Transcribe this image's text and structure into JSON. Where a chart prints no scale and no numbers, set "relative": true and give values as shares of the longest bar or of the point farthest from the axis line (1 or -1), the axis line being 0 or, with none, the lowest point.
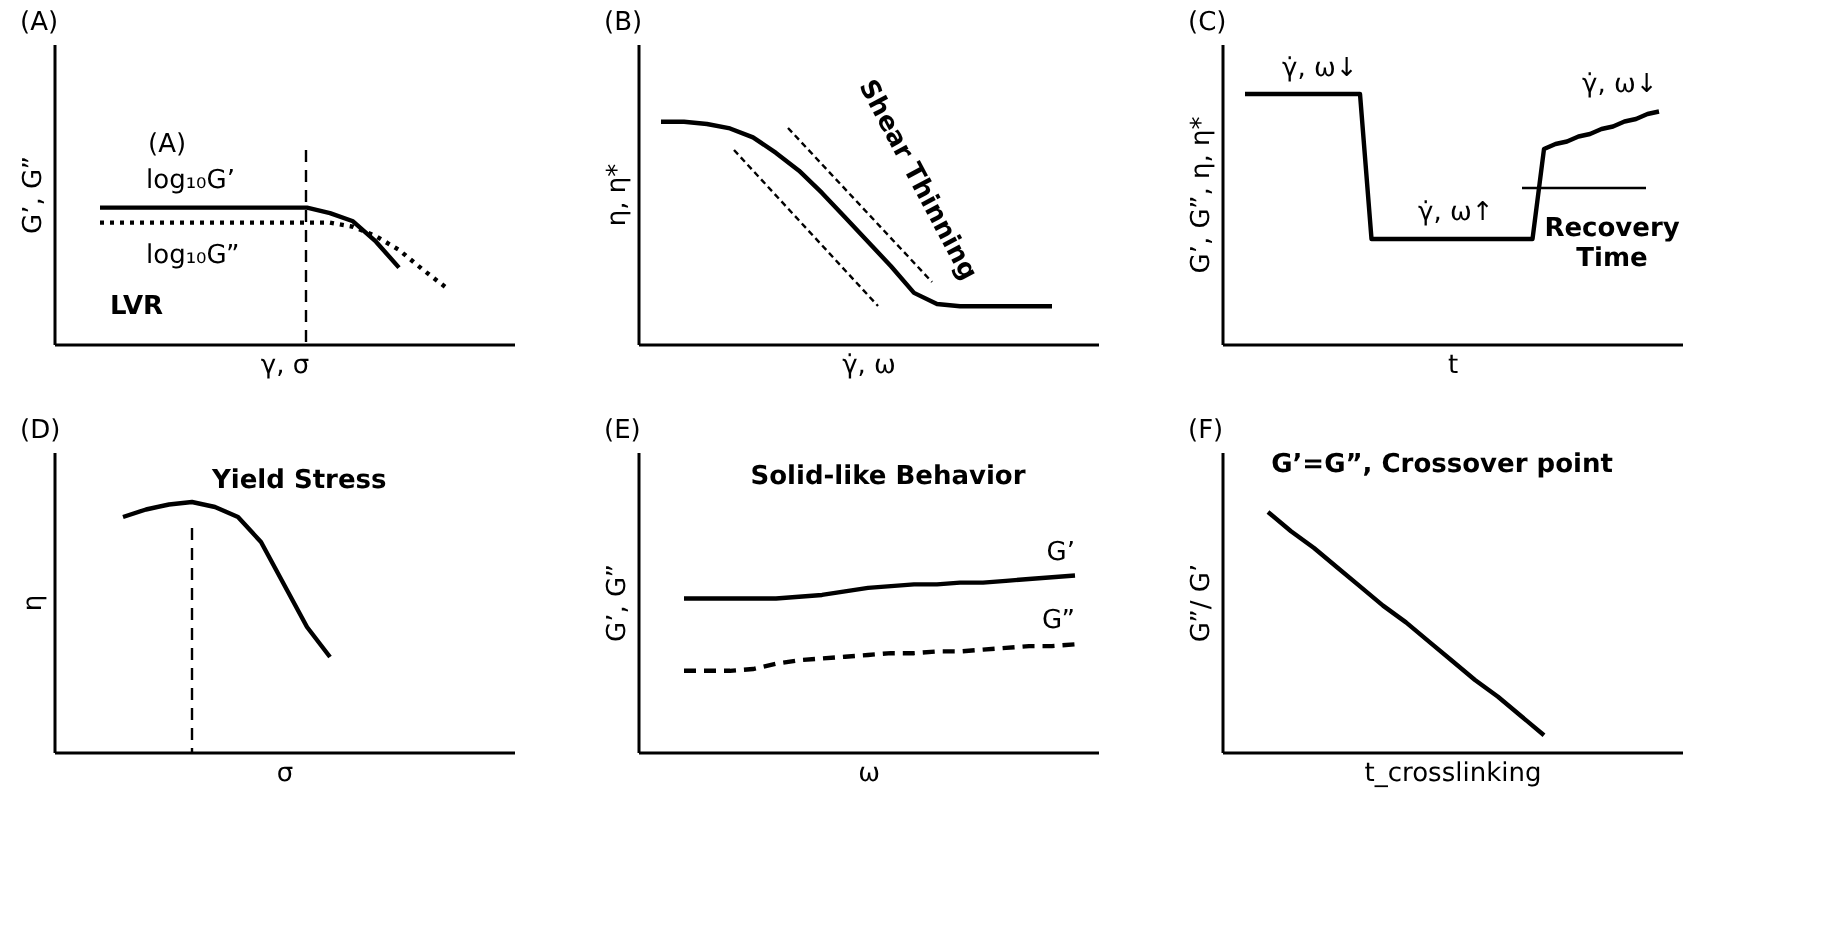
{
  "chart_data": [
    {
      "type": "line",
      "title": "(A)",
      "xlabel": "γ, σ",
      "ylabel": "G’, G”",
      "relative": true,
      "categories": [
        null,
        null,
        null,
        null,
        null,
        null,
        null,
        null,
        null,
        null,
        null,
        null,
        null,
        null,
        null,
        null,
        null,
        null,
        null,
        null,
        null
      ],
      "series": [
        {
          "name": "log₁₀G’",
          "color": "#000000",
          "line_style": "solid",
          "values": [
            null,
            null,
            1,
            1,
            1,
            1,
            1,
            1,
            1,
            1,
            1,
            1,
            0.96,
            0.9,
            0.75,
            0.56,
            null,
            null,
            null,
            null,
            null
          ]
        },
        {
          "name": "log₁₀G”",
          "color": "#000000",
          "line_style": "dotted",
          "values": [
            null,
            null,
            0.89,
            0.89,
            0.89,
            0.89,
            0.89,
            0.89,
            0.89,
            0.89,
            0.89,
            0.89,
            0.89,
            0.86,
            0.79,
            0.69,
            0.55,
            0.42,
            null,
            null,
            null
          ]
        }
      ],
      "ref_lines": [
        {
          "axis": "x",
          "line_style": "dashed"
        }
      ],
      "annotations": [
        "(A)",
        "LVR"
      ]
    },
    {
      "type": "line",
      "title": "(B)",
      "xlabel": "γ̇, ω",
      "ylabel": "η, η*",
      "relative": true,
      "categories": [
        null,
        null,
        null,
        null,
        null,
        null,
        null,
        null,
        null,
        null,
        null,
        null,
        null,
        null,
        null,
        null,
        null,
        null,
        null,
        null,
        null
      ],
      "series": [
        {
          "color": "#000000",
          "line_style": "solid",
          "values": [
            null,
            1,
            1,
            0.99,
            0.97,
            0.93,
            0.86,
            0.78,
            0.68,
            0.57,
            0.46,
            0.35,
            0.23,
            0.18,
            0.17,
            0.17,
            0.17,
            0.17,
            0.17,
            null,
            null
          ]
        }
      ],
      "annotations": [
        "Shear Thinning"
      ]
    },
    {
      "type": "line",
      "title": "(C)",
      "xlabel": "t",
      "ylabel": "G’, G”, η, η*",
      "relative": true,
      "categories": [
        null,
        null,
        null,
        null,
        null,
        null,
        null,
        null,
        null,
        null,
        null,
        null,
        null,
        null,
        null,
        null,
        null,
        null,
        null,
        null,
        null,
        null,
        null,
        null,
        null,
        null,
        null,
        null,
        null,
        null,
        null,
        null,
        null,
        null,
        null,
        null,
        null,
        null,
        null,
        null,
        null
      ],
      "series": [
        {
          "color": "#000000",
          "line_style": "solid",
          "values": [
            null,
            null,
            1,
            1,
            1,
            1,
            1,
            1,
            1,
            1,
            1,
            1,
            1,
            0.42,
            0.42,
            0.42,
            0.42,
            0.42,
            0.42,
            0.42,
            0.42,
            0.42,
            0.42,
            0.42,
            0.42,
            0.42,
            0.42,
            0.42,
            0.78,
            0.8,
            0.81,
            0.83,
            0.84,
            0.86,
            0.87,
            0.89,
            0.9,
            0.92,
            0.93,
            null,
            null
          ]
        }
      ],
      "annotations": [
        "γ̇, ω↓",
        "γ̇, ω↑",
        "γ̇, ω↓",
        "Recovery Time"
      ]
    },
    {
      "type": "line",
      "title": "(D)",
      "xlabel": "σ",
      "ylabel": "η",
      "relative": true,
      "categories": [
        null,
        null,
        null,
        null,
        null,
        null,
        null,
        null,
        null,
        null,
        null,
        null,
        null,
        null,
        null,
        null,
        null,
        null,
        null,
        null,
        null
      ],
      "series": [
        {
          "color": "#000000",
          "line_style": "solid",
          "values": [
            null,
            null,
            null,
            0.94,
            0.97,
            0.99,
            1,
            0.98,
            0.94,
            0.84,
            0.67,
            0.5,
            0.38,
            null,
            null,
            null,
            null,
            null,
            null,
            null,
            null
          ]
        }
      ],
      "ref_lines": [
        {
          "axis": "x",
          "label": "Yield Stress",
          "line_style": "dashed"
        }
      ]
    },
    {
      "type": "line",
      "title": "(E)",
      "xlabel": "ω",
      "ylabel": "G’, G”",
      "relative": true,
      "categories": [
        null,
        null,
        null,
        null,
        null,
        null,
        null,
        null,
        null,
        null,
        null,
        null,
        null,
        null,
        null,
        null,
        null,
        null,
        null,
        null,
        null
      ],
      "series": [
        {
          "name": "G’",
          "color": "#000000",
          "line_style": "solid",
          "values": [
            null,
            null,
            0.87,
            0.87,
            0.87,
            0.87,
            0.87,
            0.88,
            0.89,
            0.91,
            0.93,
            0.94,
            0.95,
            0.95,
            0.96,
            0.96,
            0.97,
            0.98,
            0.99,
            1,
            null
          ]
        },
        {
          "name": "G”",
          "color": "#000000",
          "line_style": "dashed",
          "values": [
            null,
            null,
            0.46,
            0.46,
            0.46,
            0.47,
            0.5,
            0.52,
            0.53,
            0.54,
            0.55,
            0.56,
            0.56,
            0.57,
            0.57,
            0.58,
            0.59,
            0.6,
            0.6,
            0.61,
            null
          ]
        }
      ],
      "annotations": [
        "Solid-like Behavior"
      ]
    },
    {
      "type": "line",
      "title": "(F)",
      "xlabel": "t_crosslinking",
      "ylabel": "G”/ G’",
      "relative": true,
      "categories": [
        null,
        null,
        null,
        null,
        null,
        null,
        null,
        null,
        null,
        null,
        null,
        null,
        null,
        null,
        null,
        null,
        null,
        null,
        null,
        null,
        null
      ],
      "series": [
        {
          "color": "#000000",
          "line_style": "solid",
          "values": [
            null,
            null,
            1,
            0.92,
            0.85,
            0.77,
            0.69,
            0.61,
            0.54,
            0.46,
            0.38,
            0.3,
            0.23,
            0.15,
            0.07,
            null,
            null,
            null,
            null,
            null,
            null
          ]
        }
      ],
      "annotations": [
        "G’=G”, Crossover point"
      ]
    }
  ]
}
